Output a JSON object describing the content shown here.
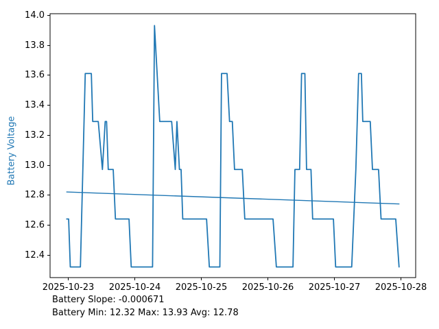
{
  "figure": {
    "ylabel": "Battery Voltage",
    "annotation_line1": "Battery Slope: -0.000671",
    "annotation_line2": "Battery Min: 12.32 Max: 13.93 Avg: 12.78"
  },
  "chart_data": {
    "type": "line",
    "title": "",
    "xlabel": "",
    "ylabel": "Battery Voltage",
    "grid": false,
    "legend": null,
    "background": "#ffffff",
    "spine_color": "#000000",
    "tick_label_color": "#000000",
    "ylabel_color": "#1f77b4",
    "x_axis": {
      "tick_labels": [
        "2025-10-23",
        "2025-10-24",
        "2025-10-25",
        "2025-10-26",
        "2025-10-27",
        "2025-10-28"
      ],
      "tick_hours": [
        0,
        24,
        48,
        72,
        96,
        120
      ],
      "unit": "hours since 2025-10-23 00:00"
    },
    "y_axis": {
      "ticks": [
        12.4,
        12.6,
        12.8,
        13.0,
        13.2,
        13.4,
        13.6,
        13.8,
        14.0
      ],
      "tick_format_decimals": 1
    },
    "xlim_hours": [
      -6.5,
      125.5
    ],
    "ylim": [
      12.249,
      14.009
    ],
    "stats": {
      "slope": -0.000671,
      "min": 12.32,
      "max": 13.93,
      "avg": 12.78
    },
    "series": [
      {
        "name": "Battery Voltage",
        "color": "#1f77b4",
        "width": 1.8,
        "points_hours_volts": [
          [
            -0.5,
            12.64
          ],
          [
            0.2,
            12.64
          ],
          [
            0.8,
            12.32
          ],
          [
            4.45,
            12.32
          ],
          [
            6.2,
            13.61
          ],
          [
            8.4,
            13.61
          ],
          [
            8.9,
            13.29
          ],
          [
            10.9,
            13.29
          ],
          [
            12.4,
            12.97
          ],
          [
            13.4,
            13.29
          ],
          [
            13.9,
            13.29
          ],
          [
            14.5,
            12.97
          ],
          [
            16.3,
            12.97
          ],
          [
            17.1,
            12.64
          ],
          [
            22.0,
            12.64
          ],
          [
            22.8,
            12.32
          ],
          [
            30.5,
            12.32
          ],
          [
            31.2,
            13.93
          ],
          [
            33.1,
            13.29
          ],
          [
            37.4,
            13.29
          ],
          [
            38.7,
            12.97
          ],
          [
            39.3,
            13.29
          ],
          [
            40.2,
            12.97
          ],
          [
            40.8,
            12.97
          ],
          [
            41.4,
            12.64
          ],
          [
            50.0,
            12.64
          ],
          [
            51.0,
            12.32
          ],
          [
            54.8,
            12.32
          ],
          [
            55.4,
            13.61
          ],
          [
            57.4,
            13.61
          ],
          [
            58.3,
            13.29
          ],
          [
            59.3,
            13.29
          ],
          [
            60.1,
            12.97
          ],
          [
            62.9,
            12.97
          ],
          [
            63.8,
            12.64
          ],
          [
            74.0,
            12.64
          ],
          [
            75.2,
            12.32
          ],
          [
            81.2,
            12.32
          ],
          [
            81.9,
            12.97
          ],
          [
            83.6,
            12.97
          ],
          [
            84.3,
            13.61
          ],
          [
            85.5,
            13.61
          ],
          [
            86.1,
            12.97
          ],
          [
            87.7,
            12.97
          ],
          [
            88.3,
            12.64
          ],
          [
            95.8,
            12.64
          ],
          [
            96.6,
            12.32
          ],
          [
            102.4,
            12.32
          ],
          [
            103.9,
            12.97
          ],
          [
            104.9,
            13.61
          ],
          [
            105.9,
            13.61
          ],
          [
            106.4,
            13.29
          ],
          [
            109.1,
            13.29
          ],
          [
            109.9,
            12.97
          ],
          [
            112.1,
            12.97
          ],
          [
            113.0,
            12.64
          ],
          [
            118.3,
            12.64
          ],
          [
            119.5,
            12.32
          ]
        ]
      },
      {
        "name": "Battery Trend",
        "color": "#1f77b4",
        "width": 1.4,
        "points_hours_volts": [
          [
            -0.5,
            12.82
          ],
          [
            119.5,
            12.74
          ]
        ]
      }
    ]
  }
}
